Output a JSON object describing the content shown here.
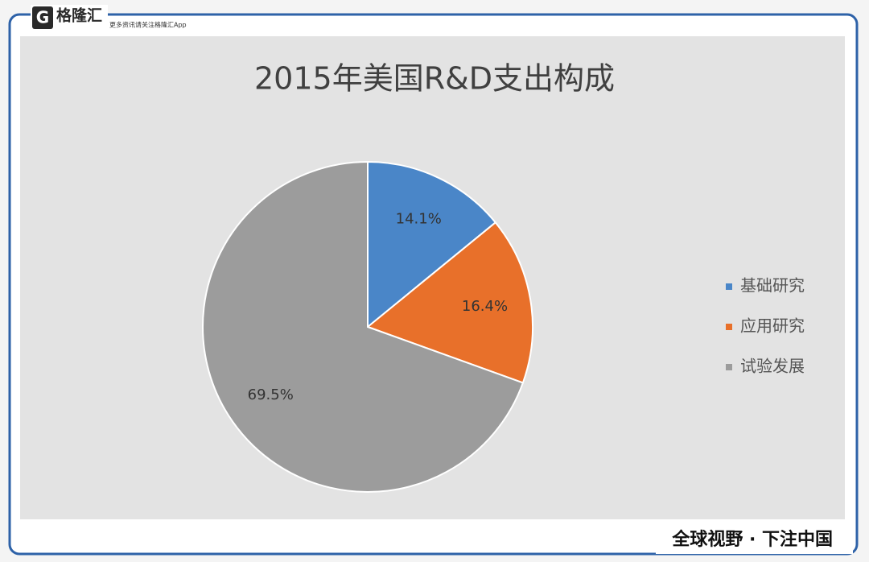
{
  "header": {
    "logo": "格隆汇",
    "slogan": "更多资讯请关注格隆汇App"
  },
  "chart_data": {
    "type": "pie",
    "title": "2015年美国R&D支出构成",
    "categories": [
      "基础研究",
      "应用研究",
      "试验发展"
    ],
    "values": [
      14.1,
      16.4,
      69.5
    ],
    "value_labels": [
      "14.1%",
      "16.4%",
      "69.5%"
    ],
    "colors": [
      "#4a86c8",
      "#e8702a",
      "#9c9c9c"
    ]
  },
  "footer": {
    "tagline": "全球视野 · 下注中国"
  }
}
